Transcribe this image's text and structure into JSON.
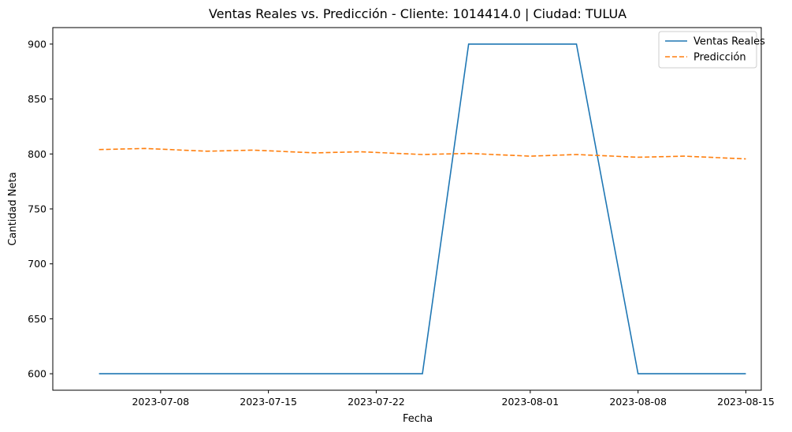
{
  "chart_data": {
    "type": "line",
    "title": "Ventas Reales vs. Predicción - Cliente: 1014414.0 | Ciudad: TULUA",
    "xlabel": "Fecha",
    "ylabel": "Cantidad Neta",
    "x_ticks": [
      "2023-07-08",
      "2023-07-15",
      "2023-07-22",
      "2023-08-01",
      "2023-08-08",
      "2023-08-15"
    ],
    "y_ticks": [
      600,
      650,
      700,
      750,
      800,
      850,
      900
    ],
    "xlim": [
      "2023-07-01",
      "2023-08-16"
    ],
    "ylim": [
      585,
      915
    ],
    "legend_position": "top-right",
    "grid": false,
    "series": [
      {
        "name": "Ventas Reales",
        "color": "#1f77b4",
        "style": "solid",
        "points": [
          {
            "x": "2023-07-04",
            "y": 600
          },
          {
            "x": "2023-07-25",
            "y": 600
          },
          {
            "x": "2023-07-28",
            "y": 900
          },
          {
            "x": "2023-08-04",
            "y": 900
          },
          {
            "x": "2023-08-08",
            "y": 600
          },
          {
            "x": "2023-08-15",
            "y": 600
          }
        ]
      },
      {
        "name": "Predicción",
        "color": "#ff7f0e",
        "style": "dashed",
        "points": [
          {
            "x": "2023-07-04",
            "y": 804
          },
          {
            "x": "2023-07-07",
            "y": 805
          },
          {
            "x": "2023-07-11",
            "y": 802.5
          },
          {
            "x": "2023-07-14",
            "y": 803.5
          },
          {
            "x": "2023-07-18",
            "y": 801
          },
          {
            "x": "2023-07-21",
            "y": 802
          },
          {
            "x": "2023-07-25",
            "y": 799.5
          },
          {
            "x": "2023-07-28",
            "y": 800.5
          },
          {
            "x": "2023-08-01",
            "y": 798
          },
          {
            "x": "2023-08-04",
            "y": 799.5
          },
          {
            "x": "2023-08-08",
            "y": 797
          },
          {
            "x": "2023-08-11",
            "y": 798
          },
          {
            "x": "2023-08-15",
            "y": 795.5
          }
        ]
      }
    ]
  }
}
